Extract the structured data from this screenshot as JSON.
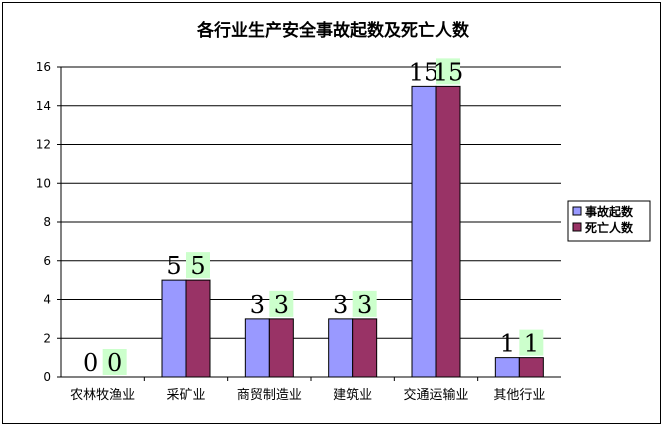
{
  "chart_data": {
    "type": "bar",
    "title": "各行业生产安全事故起数及死亡人数",
    "xlabel": "",
    "ylabel": "",
    "categories": [
      "农林牧渔业",
      "采矿业",
      "商贸制造业",
      "建筑业",
      "交通运输业",
      "其他行业"
    ],
    "series": [
      {
        "name": "事故起数",
        "values": [
          0,
          5,
          3,
          3,
          15,
          1
        ],
        "color": "#9999ff"
      },
      {
        "name": "死亡人数",
        "values": [
          0,
          5,
          3,
          3,
          15,
          1
        ],
        "color": "#993366"
      }
    ],
    "ylim": [
      0,
      16
    ],
    "yticks": [
      0,
      2,
      4,
      6,
      8,
      10,
      12,
      14,
      16
    ],
    "grid": true,
    "legend_position": "right",
    "data_label_highlight": "#ccffcc"
  }
}
